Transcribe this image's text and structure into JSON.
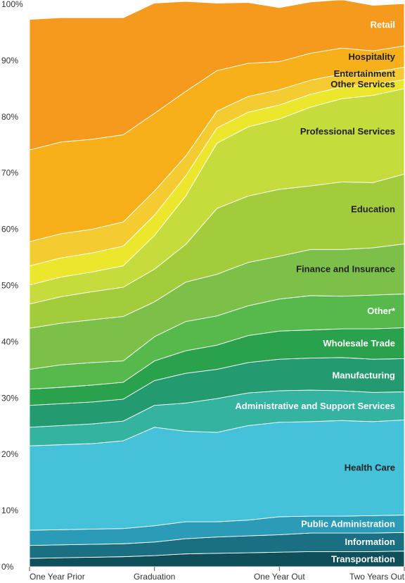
{
  "chart_data": {
    "type": "area",
    "stacked": true,
    "percent": true,
    "x": [
      0,
      1,
      2,
      3,
      4,
      5,
      6,
      7,
      8,
      9,
      10,
      11,
      12
    ],
    "x_tick_labels": [
      {
        "x": 0,
        "label": "One Year Prior"
      },
      {
        "x": 4,
        "label": "Graduation"
      },
      {
        "x": 8,
        "label": "One Year Out"
      },
      {
        "x": 12,
        "label": "Two Years Out"
      }
    ],
    "ylim": [
      0,
      100
    ],
    "y_ticks": [
      0,
      10,
      20,
      30,
      40,
      50,
      60,
      70,
      80,
      90,
      100
    ],
    "y_tick_format": "{v}%",
    "series": [
      {
        "name": "Transportation",
        "color": "#0f4f5a",
        "label_color": "#ffffff",
        "values": [
          1.5,
          1.6,
          1.7,
          1.8,
          2.0,
          2.3,
          2.4,
          2.5,
          2.6,
          2.7,
          2.7,
          2.7,
          2.8
        ]
      },
      {
        "name": "Information",
        "color": "#1a6f82",
        "label_color": "#ffffff",
        "values": [
          2.3,
          2.3,
          2.3,
          2.3,
          2.4,
          2.7,
          2.9,
          3.0,
          3.1,
          3.3,
          3.3,
          3.3,
          3.3
        ]
      },
      {
        "name": "Public Administration",
        "color": "#2b9cb8",
        "label_color": "#ffffff",
        "values": [
          2.7,
          2.7,
          2.7,
          2.7,
          2.9,
          3.0,
          2.7,
          2.8,
          3.2,
          3.0,
          3.0,
          3.1,
          3.1
        ]
      },
      {
        "name": "Health Care",
        "color": "#45c1d9",
        "label_color": "#222222",
        "values": [
          15.0,
          15.1,
          15.2,
          15.6,
          17.5,
          16.1,
          15.9,
          16.8,
          16.8,
          16.8,
          17.0,
          16.7,
          16.9
        ]
      },
      {
        "name": "Administrative and Support Services",
        "color": "#33b3a0",
        "label_color": "#ffffff",
        "values": [
          3.3,
          3.4,
          3.5,
          3.5,
          3.9,
          5.0,
          6.0,
          5.8,
          5.6,
          5.6,
          5.3,
          5.2,
          5.0
        ]
      },
      {
        "name": "Manufacturing",
        "color": "#239a70",
        "label_color": "#ffffff",
        "values": [
          3.9,
          3.9,
          3.9,
          3.9,
          4.4,
          5.3,
          5.2,
          5.4,
          5.6,
          5.7,
          5.9,
          5.9,
          5.9
        ]
      },
      {
        "name": "Wholesale Trade",
        "color": "#2aa24c",
        "label_color": "#ffffff",
        "values": [
          2.9,
          2.9,
          3.0,
          3.0,
          3.5,
          4.0,
          4.3,
          4.8,
          5.0,
          5.0,
          5.1,
          5.4,
          5.5
        ]
      },
      {
        "name": "Other*",
        "color": "#55b94c",
        "label_color": "#ffffff",
        "values": [
          3.5,
          4.0,
          4.0,
          3.8,
          4.3,
          5.2,
          5.2,
          5.3,
          5.7,
          6.1,
          5.8,
          6.0,
          6.0
        ]
      },
      {
        "name": "Finance and Insurance",
        "color": "#7cc04a",
        "label_color": "#222222",
        "values": [
          7.3,
          7.4,
          7.6,
          7.9,
          6.2,
          7.0,
          7.4,
          7.7,
          7.6,
          8.2,
          8.3,
          8.4,
          8.9
        ]
      },
      {
        "name": "Education",
        "color": "#a3cc3c",
        "label_color": "#222222",
        "values": [
          4.3,
          4.7,
          5.0,
          5.2,
          5.8,
          6.7,
          11.7,
          11.8,
          11.9,
          11.3,
          12.0,
          11.6,
          12.4
        ]
      },
      {
        "name": "Professional Services",
        "color": "#c6dc3c",
        "label_color": "#222222",
        "values": [
          3.4,
          3.5,
          3.5,
          3.8,
          6.0,
          8.6,
          11.6,
          12.3,
          12.5,
          14.0,
          14.8,
          15.5,
          15.2
        ]
      },
      {
        "name": "Other Services",
        "color": "#ece72c",
        "label_color": "#222222",
        "values": [
          3.4,
          3.4,
          3.4,
          3.5,
          3.6,
          3.6,
          2.7,
          2.6,
          2.5,
          2.3,
          2.1,
          1.9,
          1.6
        ]
      },
      {
        "name": "Entertainment",
        "color": "#f4cb31",
        "label_color": "#222222",
        "values": [
          4.3,
          4.3,
          4.2,
          4.3,
          4.3,
          3.5,
          3.0,
          2.8,
          2.7,
          2.5,
          2.3,
          2.2,
          2.2
        ]
      },
      {
        "name": "Hospitality",
        "color": "#f7b01a",
        "label_color": "#222222",
        "values": [
          16.3,
          16.3,
          16.0,
          15.5,
          13.8,
          11.5,
          7.2,
          5.9,
          5.0,
          4.8,
          4.6,
          3.8,
          3.8
        ]
      },
      {
        "name": "Retail",
        "color": "#f59a1c",
        "label_color": "#ffffff",
        "values": [
          23.2,
          22.1,
          21.6,
          20.8,
          19.6,
          16.0,
          12.0,
          10.8,
          9.6,
          9.1,
          8.6,
          8.1,
          7.5
        ]
      }
    ]
  }
}
